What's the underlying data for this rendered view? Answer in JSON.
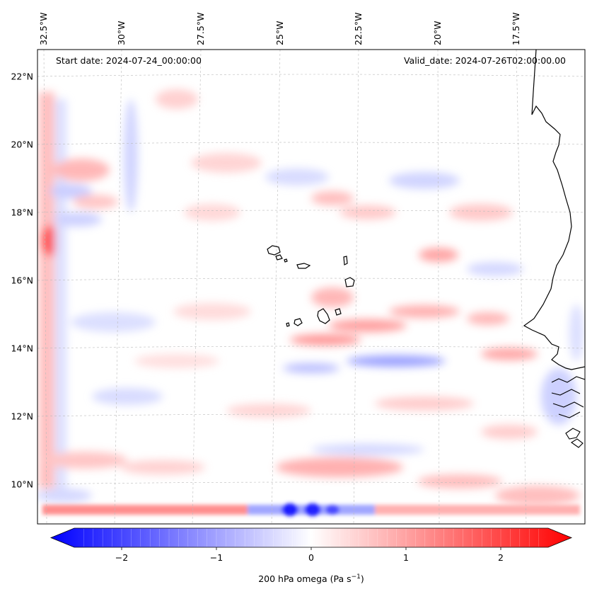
{
  "map": {
    "start_date_text": "Start date: 2024-07-24_00:00:00",
    "valid_date_text": "Valid_date: 2024-07-26T02:00:00.00",
    "lon_ticks": [
      "32.5°W",
      "30°W",
      "27.5°W",
      "25°W",
      "22.5°W",
      "20°W",
      "17.5°W"
    ],
    "lat_ticks": [
      "22°N",
      "20°N",
      "18°N",
      "16°N",
      "14°N",
      "12°N",
      "10°N"
    ]
  },
  "colorbar": {
    "ticks": [
      "−2",
      "−1",
      "0",
      "1",
      "2"
    ],
    "label_main": "200 hPa omega (Pa s",
    "label_exp": "−1",
    "label_close": ")",
    "negative_color": "#0000ff",
    "neutral_color": "#ffffff",
    "positive_color": "#ff0000"
  }
}
